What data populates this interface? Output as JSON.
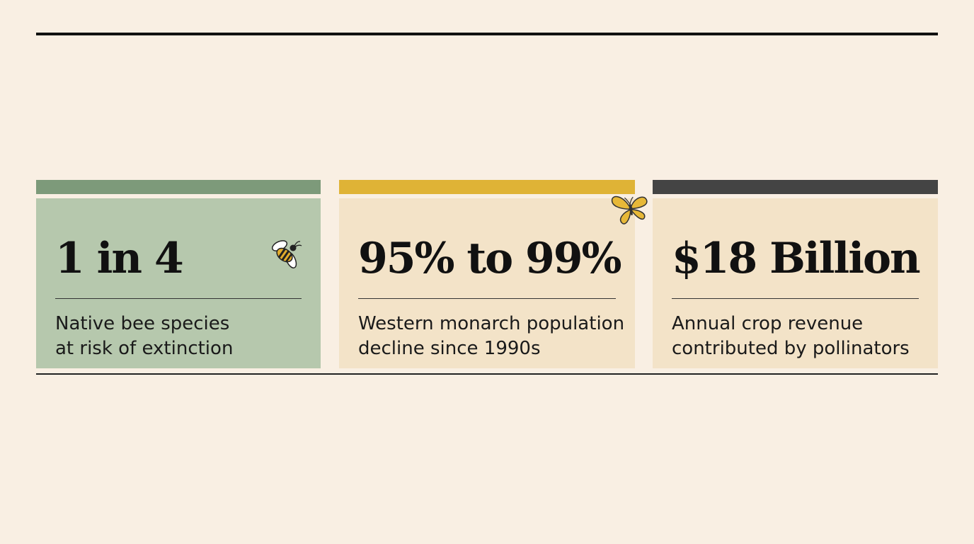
{
  "stats": [
    {
      "value": "1 in 4",
      "line1": "Native bee species",
      "line2": "at risk of extinction",
      "icon": "bee-icon",
      "accent": "#7d9a7a",
      "background": "#b6c8ad"
    },
    {
      "value": "95% to 99%",
      "line1": "Western monarch population",
      "line2": "decline since 1990s",
      "icon": "butterfly-icon",
      "accent": "#dfb336",
      "background": "#f3e3c8"
    },
    {
      "value": "$18 Billion",
      "line1": "Annual crop revenue",
      "line2": "contributed by pollinators",
      "accent": "#444444",
      "background": "#f3e3c8"
    }
  ]
}
